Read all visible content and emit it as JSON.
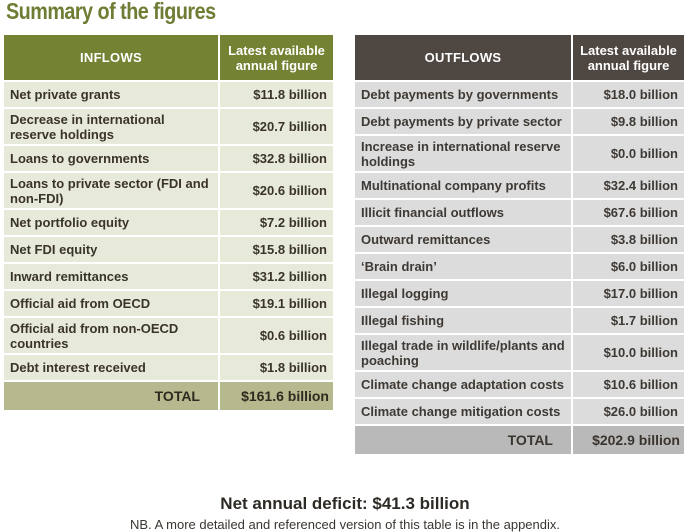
{
  "title": "Summary of the figures",
  "colors": {
    "title": "#6e7d34",
    "inflows_header": "#738233",
    "inflows_row": "#e7ead9",
    "inflows_total": "#b5b98d",
    "outflows_header": "#4f4741",
    "outflows_row": "#dcdcdc",
    "outflows_total": "#b9b9b9"
  },
  "inflows": {
    "header": "INFLOWS",
    "figure_header": "Latest available annual figure",
    "rows": [
      {
        "label": "Net private grants",
        "value": "$11.8 billion"
      },
      {
        "label": "Decrease in international reserve holdings",
        "value": "$20.7 billion"
      },
      {
        "label": "Loans to governments",
        "value": "$32.8 billion"
      },
      {
        "label": "Loans to private sector (FDI and non-FDI)",
        "value": "$20.6 billion"
      },
      {
        "label": "Net portfolio equity",
        "value": "$7.2 billion"
      },
      {
        "label": "Net FDI equity",
        "value": "$15.8 billion"
      },
      {
        "label": "Inward remittances",
        "value": "$31.2 billion"
      },
      {
        "label": "Official aid from OECD",
        "value": "$19.1 billion"
      },
      {
        "label": "Official aid from non-OECD countries",
        "value": "$0.6 billion"
      },
      {
        "label": "Debt interest received",
        "value": "$1.8 billion"
      }
    ],
    "total_label": "TOTAL",
    "total_value": "$161.6 billion"
  },
  "outflows": {
    "header": "OUTFLOWS",
    "figure_header": "Latest available annual figure",
    "rows": [
      {
        "label": "Debt payments by governments",
        "value": "$18.0 billion"
      },
      {
        "label": "Debt payments by private sector",
        "value": "$9.8 billion"
      },
      {
        "label": "Increase in international reserve holdings",
        "value": "$0.0 billion"
      },
      {
        "label": "Multinational company profits",
        "value": "$32.4 billion"
      },
      {
        "label": "Illicit financial outflows",
        "value": "$67.6 billion"
      },
      {
        "label": "Outward remittances",
        "value": "$3.8 billion"
      },
      {
        "label": "‘Brain drain’",
        "value": "$6.0 billion"
      },
      {
        "label": "Illegal logging",
        "value": "$17.0 billion"
      },
      {
        "label": "Illegal fishing",
        "value": "$1.7 billion"
      },
      {
        "label": "Illegal trade in wildlife/plants and poaching",
        "value": "$10.0 billion"
      },
      {
        "label": "Climate change adaptation costs",
        "value": "$10.6 billion"
      },
      {
        "label": "Climate change mitigation costs",
        "value": "$26.0 billion"
      }
    ],
    "total_label": "TOTAL",
    "total_value": "$202.9 billion"
  },
  "summary": {
    "deficit": "Net annual deficit: $41.3 billion",
    "note": "NB. A more detailed and referenced version of this table is in the appendix."
  }
}
